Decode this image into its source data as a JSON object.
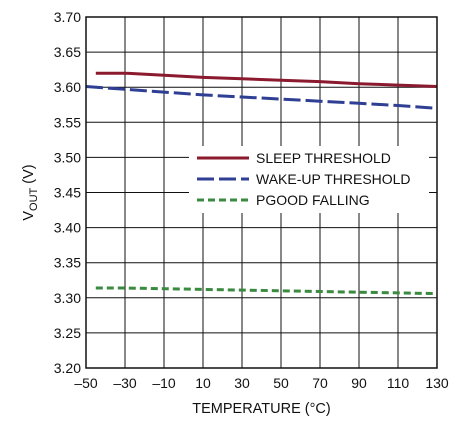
{
  "chart_data": {
    "type": "line",
    "xlabel": "TEMPERATURE (°C)",
    "ylabel": {
      "main": "V",
      "sub": "OUT",
      "unit": " (V)"
    },
    "xlim": [
      -50,
      130
    ],
    "ylim": [
      3.2,
      3.7
    ],
    "xticks": [
      -50,
      -30,
      -10,
      10,
      30,
      50,
      70,
      90,
      110,
      130
    ],
    "xtick_labels": [
      "–50",
      "–30",
      "–10",
      "10",
      "30",
      "50",
      "70",
      "90",
      "110",
      "130"
    ],
    "yticks": [
      3.2,
      3.25,
      3.3,
      3.35,
      3.4,
      3.45,
      3.5,
      3.55,
      3.6,
      3.65,
      3.7
    ],
    "ytick_labels": [
      "3.20",
      "3.25",
      "3.30",
      "3.35",
      "3.40",
      "3.45",
      "3.50",
      "3.55",
      "3.60",
      "3.65",
      "3.70"
    ],
    "grid": true,
    "legend_position": "center-right",
    "series": [
      {
        "name": "SLEEP THRESHOLD",
        "color": "#8b1a2e",
        "style": "solid",
        "x": [
          -45,
          -30,
          -10,
          10,
          30,
          50,
          70,
          90,
          110,
          130
        ],
        "y": [
          3.62,
          3.62,
          3.617,
          3.614,
          3.612,
          3.61,
          3.608,
          3.605,
          3.603,
          3.601
        ]
      },
      {
        "name": "WAKE-UP THRESHOLD",
        "color": "#2e3f94",
        "style": "longdash",
        "x": [
          -50,
          -30,
          -10,
          10,
          30,
          50,
          70,
          90,
          110,
          130
        ],
        "y": [
          3.601,
          3.597,
          3.593,
          3.589,
          3.586,
          3.583,
          3.58,
          3.577,
          3.574,
          3.57
        ]
      },
      {
        "name": "PGOOD FALLING",
        "color": "#3a8a40",
        "style": "shortdash",
        "x": [
          -45,
          -30,
          -10,
          10,
          30,
          50,
          70,
          90,
          110,
          130
        ],
        "y": [
          3.314,
          3.314,
          3.313,
          3.312,
          3.311,
          3.31,
          3.309,
          3.308,
          3.307,
          3.306
        ]
      }
    ]
  }
}
